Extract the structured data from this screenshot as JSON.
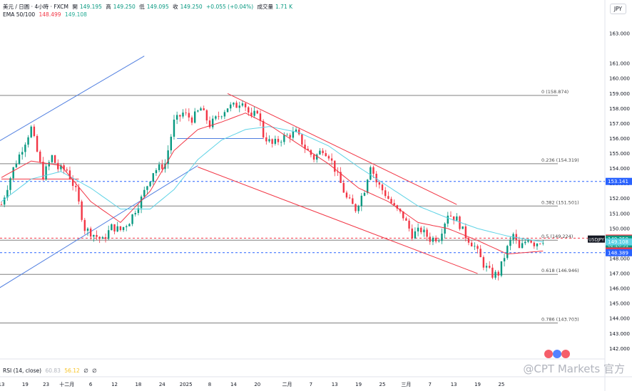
{
  "header": {
    "symbol_line": "美元 / 日圓 · 4小時 · FXCM",
    "open_label": "開",
    "open": "149.195",
    "high_label": "高",
    "high": "149.250",
    "low_label": "低",
    "low": "149.095",
    "close_label": "收",
    "close": "149.250",
    "change": "+0.055 (+0.04%)",
    "volume_label": "成交量",
    "volume": "1.71 K",
    "ema_label": "EMA 50/100",
    "ema50": "148.499",
    "ema100": "149.108"
  },
  "currency_button": "JPY",
  "rsi_header": {
    "label": "RSI (14, close)",
    "value": "60.83",
    "ma": "56.12",
    "extra1": "∅",
    "extra2": "∅"
  },
  "watermark": "@CPT Markets 官方",
  "colors": {
    "up": "#089981",
    "down": "#f23645",
    "ema50": "#f23645",
    "ema100": "#5fd3e6",
    "channel": "#4f7ee0",
    "fib": "#808080"
  },
  "chart_data": {
    "type": "candlestick",
    "symbol": "USDJPY",
    "timeframe": "4小時",
    "ylim": [
      141.4,
      164.0
    ],
    "y_ticks": [
      142.0,
      143.0,
      144.0,
      145.0,
      146.0,
      147.0,
      148.0,
      149.0,
      150.0,
      151.0,
      152.0,
      153.0,
      154.0,
      155.0,
      156.0,
      157.0,
      158.0,
      159.0,
      160.0,
      161.0,
      163.0
    ],
    "y_tick_labels": [
      "142.000",
      "143.000",
      "144.000",
      "145.000",
      "146.000",
      "147.000",
      "148.000",
      "149.000",
      "150.000",
      "151.000",
      "152.000",
      "153.000",
      "154.000",
      "155.000",
      "156.000",
      "157.000",
      "158.000",
      "159.000",
      "160.000",
      "161.000",
      "163.000"
    ],
    "x_ticks": [
      "13",
      "19",
      "23",
      "十二月",
      "6",
      "12",
      "18",
      "24",
      "2025",
      "8",
      "14",
      "20",
      "二月",
      "7",
      "13",
      "19",
      "25",
      "三月",
      "7",
      "13",
      "19",
      "25"
    ],
    "x_tick_index": [
      0,
      8,
      15,
      22,
      30,
      38,
      46,
      54,
      62,
      70,
      78,
      86,
      96,
      104,
      112,
      120,
      128,
      136,
      144,
      152,
      160,
      168
    ],
    "n_bars": 186,
    "price_path": [
      [
        0,
        151.6
      ],
      [
        4,
        154.0
      ],
      [
        8,
        155.8
      ],
      [
        10,
        156.7
      ],
      [
        14,
        153.5
      ],
      [
        17,
        154.8
      ],
      [
        19,
        154.0
      ],
      [
        22,
        153.9
      ],
      [
        25,
        152.5
      ],
      [
        28,
        150.0
      ],
      [
        31,
        149.6
      ],
      [
        34,
        149.2
      ],
      [
        37,
        150.1
      ],
      [
        40,
        149.9
      ],
      [
        43,
        150.5
      ],
      [
        47,
        152.0
      ],
      [
        51,
        153.8
      ],
      [
        55,
        154.3
      ],
      [
        58,
        157.1
      ],
      [
        61,
        157.7
      ],
      [
        64,
        157.3
      ],
      [
        67,
        158.0
      ],
      [
        70,
        156.9
      ],
      [
        73,
        157.5
      ],
      [
        76,
        158.1
      ],
      [
        79,
        158.2
      ],
      [
        81,
        158.6
      ],
      [
        84,
        157.3
      ],
      [
        86,
        157.9
      ],
      [
        88,
        156.2
      ],
      [
        91,
        155.6
      ],
      [
        95,
        156.1
      ],
      [
        99,
        156.4
      ],
      [
        102,
        155.4
      ],
      [
        105,
        154.7
      ],
      [
        108,
        155.3
      ],
      [
        110,
        154.9
      ],
      [
        113,
        153.5
      ],
      [
        116,
        152.0
      ],
      [
        119,
        151.3
      ],
      [
        122,
        152.6
      ],
      [
        124,
        154.3
      ],
      [
        126,
        153.1
      ],
      [
        129,
        152.3
      ],
      [
        132,
        151.4
      ],
      [
        135,
        150.8
      ],
      [
        138,
        149.6
      ],
      [
        141,
        149.9
      ],
      [
        144,
        149.3
      ],
      [
        147,
        149.4
      ],
      [
        150,
        151.0
      ],
      [
        153,
        150.6
      ],
      [
        156,
        149.5
      ],
      [
        159,
        148.8
      ],
      [
        162,
        147.6
      ],
      [
        165,
        146.9
      ],
      [
        167,
        147.0
      ],
      [
        170,
        148.7
      ],
      [
        172,
        149.6
      ],
      [
        174,
        148.6
      ],
      [
        177,
        149.4
      ],
      [
        179,
        149.0
      ],
      [
        182,
        149.25
      ]
    ],
    "ema50_path": [
      [
        0,
        153.4
      ],
      [
        10,
        154.5
      ],
      [
        20,
        154.2
      ],
      [
        30,
        151.8
      ],
      [
        40,
        150.4
      ],
      [
        50,
        152.5
      ],
      [
        58,
        155.2
      ],
      [
        66,
        156.6
      ],
      [
        74,
        157.1
      ],
      [
        82,
        157.7
      ],
      [
        90,
        156.9
      ],
      [
        100,
        155.6
      ],
      [
        110,
        154.3
      ],
      [
        120,
        152.7
      ],
      [
        130,
        151.8
      ],
      [
        140,
        150.4
      ],
      [
        150,
        150.0
      ],
      [
        160,
        149.2
      ],
      [
        170,
        148.3
      ],
      [
        182,
        148.5
      ]
    ],
    "ema100_path": [
      [
        0,
        151.8
      ],
      [
        10,
        153.3
      ],
      [
        20,
        153.8
      ],
      [
        30,
        152.7
      ],
      [
        40,
        151.3
      ],
      [
        50,
        151.3
      ],
      [
        58,
        152.6
      ],
      [
        66,
        154.6
      ],
      [
        74,
        155.9
      ],
      [
        82,
        156.6
      ],
      [
        90,
        156.8
      ],
      [
        100,
        156.4
      ],
      [
        110,
        155.5
      ],
      [
        120,
        154.1
      ],
      [
        130,
        152.8
      ],
      [
        140,
        151.5
      ],
      [
        150,
        150.7
      ],
      [
        160,
        150.0
      ],
      [
        170,
        149.5
      ],
      [
        182,
        149.1
      ]
    ],
    "fib_levels": [
      {
        "label": "0 (158.874)",
        "value": 158.874
      },
      {
        "label": "0.236 (154.319)",
        "value": 154.319
      },
      {
        "label": "0.382 (151.501)",
        "value": 151.501
      },
      {
        "label": "0.5 (149.224)",
        "value": 149.224
      },
      {
        "label": "0.618 (146.946)",
        "value": 146.946
      },
      {
        "label": "0.786 (143.703)",
        "value": 143.703
      }
    ],
    "price_tags": [
      {
        "label": "153.141",
        "value": 153.141,
        "color": "#2962ff"
      },
      {
        "label": "149.357",
        "value": 149.357,
        "color": "#f23645"
      },
      {
        "label": "USDJPY",
        "value": 149.25,
        "color": "#089981",
        "sub": [
          "149.250",
          "02:26:31"
        ]
      },
      {
        "label": "149.108",
        "value": 149.108,
        "color": "#5fd3e6"
      },
      {
        "label": "148.499",
        "value": 148.499,
        "color": "#f23645"
      },
      {
        "label": "148.389",
        "value": 148.389,
        "color": "#2962ff"
      }
    ],
    "dashed_lines": [
      {
        "value": 153.141,
        "color": "#2962ff"
      },
      {
        "value": 148.389,
        "color": "#2962ff"
      },
      {
        "value": 149.357,
        "color": "#f23645"
      }
    ],
    "channels": [
      {
        "color": "#4f7ee0",
        "lines": [
          [
            [
              -1,
              155.8
            ],
            [
              48,
              161.5
            ]
          ],
          [
            [
              -1,
              146.0
            ],
            [
              66,
              154.2
            ]
          ]
        ]
      },
      {
        "color": "#f23645",
        "lines": [
          [
            [
              76,
              159.0
            ],
            [
              153,
              151.6
            ]
          ],
          [
            [
              66,
              154.1
            ],
            [
              160,
              147.0
            ]
          ]
        ]
      }
    ],
    "flat_segments": [
      {
        "color": "#4f7ee0",
        "from": [
          59,
          156.0
        ],
        "to": [
          88,
          156.0
        ]
      },
      {
        "color": "#f23645",
        "from": [
          0,
          153.3
        ],
        "to": [
          26,
          153.3
        ]
      }
    ],
    "rsi": {
      "value": 60.83,
      "ma": 56.12
    }
  }
}
